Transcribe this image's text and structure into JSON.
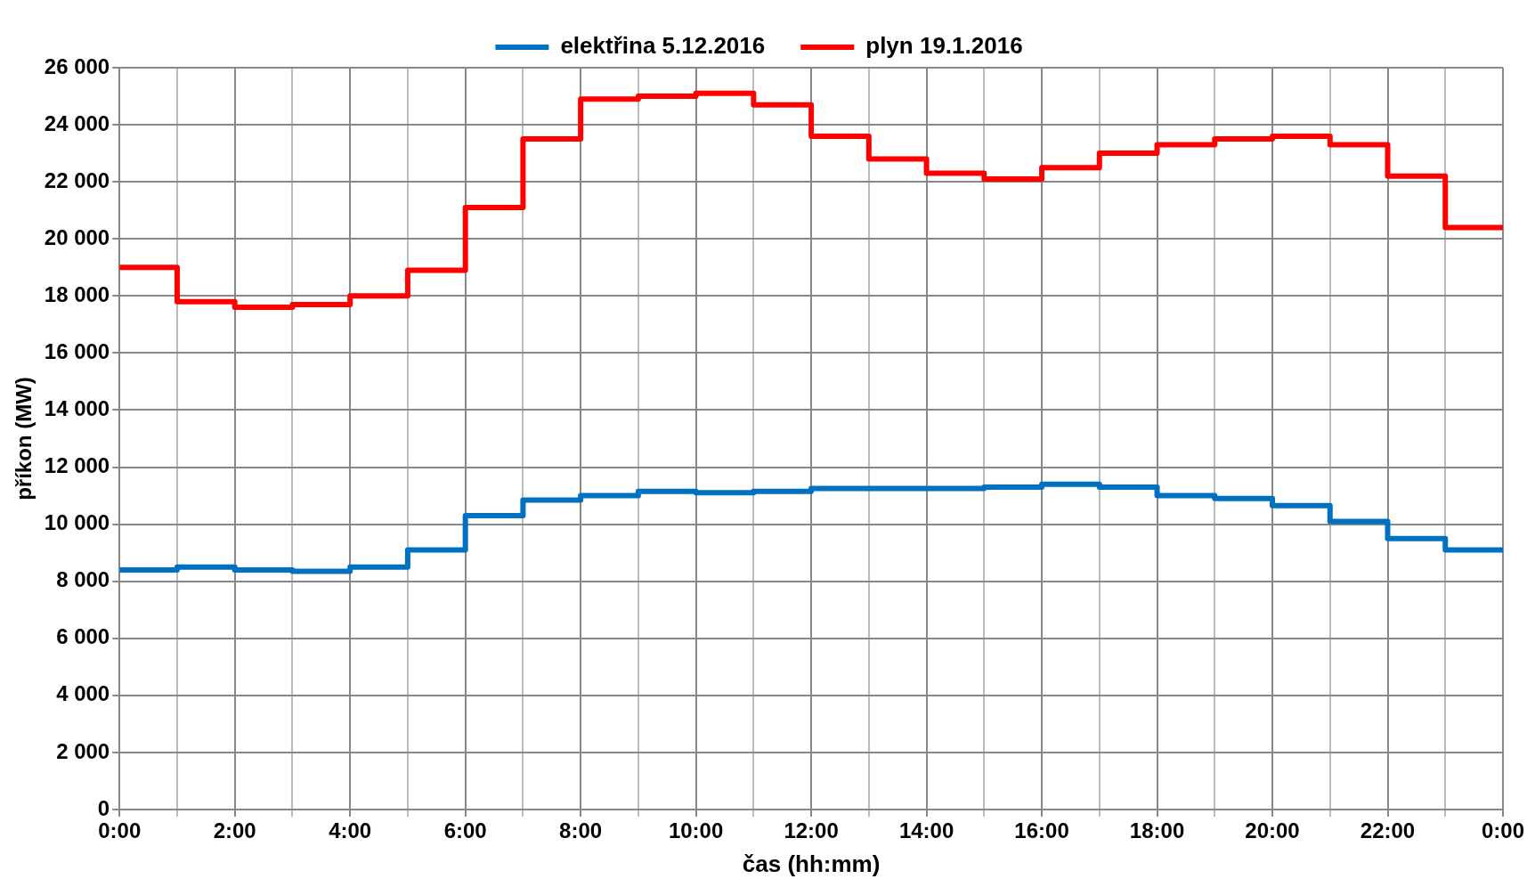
{
  "chart_data": {
    "type": "step",
    "xlabel": "čas (hh:mm)",
    "ylabel": "příkon (MW)",
    "legend": "top",
    "grid": true,
    "line_style": "solid",
    "marker": "none",
    "x": [
      0,
      1,
      2,
      3,
      4,
      5,
      6,
      7,
      8,
      9,
      10,
      11,
      12,
      13,
      14,
      15,
      16,
      17,
      18,
      19,
      20,
      21,
      22,
      23,
      24
    ],
    "xlim": [
      0,
      24
    ],
    "xticks": [
      {
        "value": 0,
        "label": "0:00"
      },
      {
        "value": 1,
        "label": null
      },
      {
        "value": 2,
        "label": "2:00"
      },
      {
        "value": 3,
        "label": null
      },
      {
        "value": 4,
        "label": "4:00"
      },
      {
        "value": 5,
        "label": null
      },
      {
        "value": 6,
        "label": "6:00"
      },
      {
        "value": 7,
        "label": null
      },
      {
        "value": 8,
        "label": "8:00"
      },
      {
        "value": 9,
        "label": null
      },
      {
        "value": 10,
        "label": "10:00"
      },
      {
        "value": 11,
        "label": null
      },
      {
        "value": 12,
        "label": "12:00"
      },
      {
        "value": 13,
        "label": null
      },
      {
        "value": 14,
        "label": "14:00"
      },
      {
        "value": 15,
        "label": null
      },
      {
        "value": 16,
        "label": "16:00"
      },
      {
        "value": 17,
        "label": null
      },
      {
        "value": 18,
        "label": "18:00"
      },
      {
        "value": 19,
        "label": null
      },
      {
        "value": 20,
        "label": "20:00"
      },
      {
        "value": 21,
        "label": null
      },
      {
        "value": 22,
        "label": "22:00"
      },
      {
        "value": 23,
        "label": null
      },
      {
        "value": 24,
        "label": "0:00"
      }
    ],
    "ylim": [
      0,
      26000
    ],
    "yticks": [
      0,
      {
        "value": 2000,
        "label": "2 000"
      },
      {
        "value": 4000,
        "label": "4 000"
      },
      {
        "value": 6000,
        "label": "6 000"
      },
      {
        "value": 8000,
        "label": "8 000"
      },
      {
        "value": 10000,
        "label": "10 000"
      },
      {
        "value": 12000,
        "label": "12 000"
      },
      {
        "value": 14000,
        "label": "14 000"
      },
      {
        "value": 16000,
        "label": "16 000"
      },
      {
        "value": 18000,
        "label": "18 000"
      },
      {
        "value": 20000,
        "label": "20 000"
      },
      {
        "value": 22000,
        "label": "22 000"
      },
      {
        "value": 24000,
        "label": "24 000"
      },
      {
        "value": 26000,
        "label": "26 000"
      }
    ],
    "series": [
      {
        "name": "elektřina 5.12.2016",
        "color": "#0070c0",
        "values": [
          8400,
          8500,
          8400,
          8350,
          8500,
          9100,
          10300,
          10850,
          11000,
          11150,
          11100,
          11150,
          11250,
          11250,
          11250,
          11300,
          11400,
          11300,
          11000,
          10900,
          10650,
          10100,
          9500,
          9100,
          9100
        ]
      },
      {
        "name": "plyn 19.1.2016",
        "color": "#ff0000",
        "values": [
          19000,
          17800,
          17600,
          17700,
          18000,
          18900,
          21100,
          23500,
          24900,
          25000,
          25100,
          24700,
          23600,
          22800,
          22300,
          22100,
          22500,
          23000,
          23300,
          23500,
          23600,
          23300,
          22200,
          20400,
          20400
        ]
      }
    ]
  }
}
